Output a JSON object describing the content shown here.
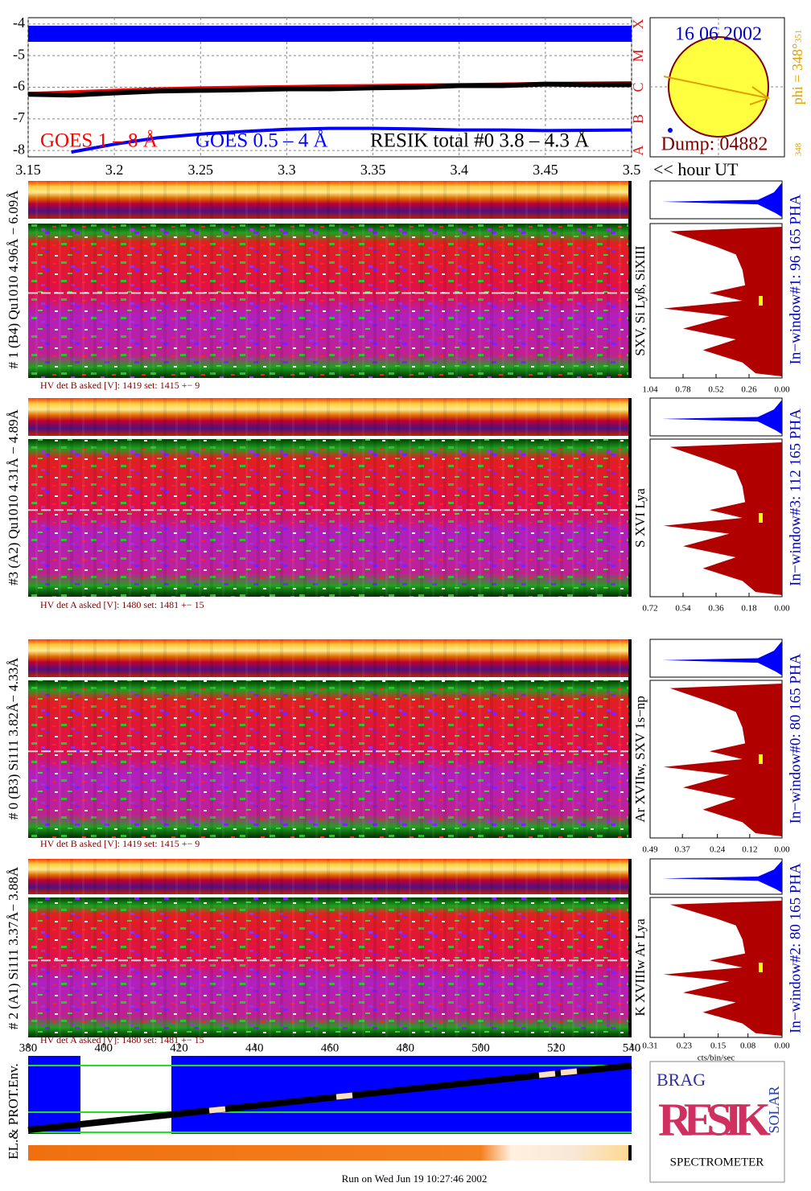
{
  "chart_data": {
    "type": "line",
    "x": [
      3.15,
      3.175,
      3.2,
      3.225,
      3.25,
      3.275,
      3.3,
      3.325,
      3.35,
      3.375,
      3.4,
      3.425,
      3.45,
      3.475,
      3.5
    ],
    "series": [
      {
        "name": "GOES 1 – 8 Å",
        "color": "#ff0000",
        "values": [
          -6.2,
          -6.15,
          -6.1,
          -6.05,
          -6.02,
          -6.0,
          -5.98,
          -5.96,
          -5.95,
          -5.93,
          -5.92,
          -5.9,
          -5.88,
          -5.87,
          -5.86
        ]
      },
      {
        "name": "GOES 0.5 – 4 Å",
        "color": "#0000ff",
        "values": [
          null,
          -8.05,
          -7.8,
          -7.6,
          -7.48,
          -7.4,
          -7.33,
          -7.3,
          -7.3,
          -7.32,
          -7.35,
          -7.35,
          -7.37,
          -7.36,
          -7.35
        ]
      },
      {
        "name": "RESIK total #0  3.8 – 4.3 Å",
        "color": "#000000",
        "values": [
          -6.22,
          -6.25,
          -6.18,
          -6.12,
          -6.1,
          -6.08,
          -6.05,
          -6.05,
          -6.02,
          -6.0,
          -5.95,
          -5.95,
          -5.9,
          -5.92,
          -5.92
        ]
      }
    ],
    "xlim": [
      3.15,
      3.5
    ],
    "xticks": [
      3.15,
      3.2,
      3.25,
      3.3,
      3.35,
      3.4,
      3.45,
      3.5
    ],
    "ylim": [
      -8.2,
      -3.8
    ],
    "yticks": [
      -4,
      -5,
      -6,
      -7,
      -8
    ],
    "grid": true,
    "x_label": "<< hour UT",
    "class_labels": [
      "X",
      "M",
      "C",
      "B",
      "A"
    ]
  },
  "sun_box": {
    "date": "16 06 2002",
    "dump": "Dump: 04882",
    "phi": "phi = 348°",
    "phi_max": "351",
    "phi_min": "348"
  },
  "panels": [
    {
      "label": "# 1 (B4) Qu1010 4.96Å − 6.09Å",
      "line_label": "SXV, Si Lyß, SiXIII",
      "window_label": "In−window#1:   96 165  PHA",
      "hv_text": "HV det B asked [V]:  1419 set:  1415  +−   9",
      "hist_xlim": [
        1.04,
        0
      ],
      "hist_ticks": [
        1.04,
        0.78,
        0.52,
        0.26,
        {
          "value": 0,
          "label": "0.00"
        }
      ]
    },
    {
      "label": "#3 (A2) Qu1010  4.31Å − 4.89Å",
      "line_label": "S XVI Lya",
      "window_label": "In−window#3:  112 165 PHA",
      "hv_text": "HV det A asked [V]:  1480 set:  1481  +−   15",
      "hist_xlim": [
        0.72,
        0
      ],
      "hist_ticks": [
        0.72,
        0.54,
        0.36,
        0.18,
        {
          "value": 0,
          "label": "0.00"
        }
      ]
    },
    {
      "label": "# 0 (B3) Si111  3.82Å− 4.33Å",
      "line_label": "Ar XVIIw,  SXV 1s−np",
      "window_label": "In−window#0:   80 165  PHA",
      "hv_text": "HV det B asked [V]:  1419 set:  1415  +−   9",
      "hist_xlim": [
        0.49,
        0
      ],
      "hist_ticks": [
        0.49,
        0.37,
        0.24,
        0.12,
        {
          "value": 0,
          "label": "0.00"
        }
      ]
    },
    {
      "label": "# 2 (A1) Si111  3.37Å− 3.88Å",
      "line_label": "K XVIIIw  Ar Lya",
      "window_label": "In−window#2:   80 165  PHA",
      "hv_text": "HV det A asked [V]:  1480 set:  1481  +−   15",
      "hist_xlim": [
        0.31,
        0
      ],
      "hist_ticks": [
        0.31,
        0.23,
        0.15,
        0.08,
        {
          "value": 0,
          "label": "0.00"
        }
      ]
    }
  ],
  "detector_axis": {
    "xlim": [
      380,
      540
    ],
    "xticks": [
      380,
      400,
      420,
      440,
      460,
      480,
      500,
      520,
      540
    ]
  },
  "hist_unit": "cts/bin/sec",
  "env_label": "EL.& PROT.Env.",
  "logo": {
    "brag": "BRAG",
    "resik": "RESIK",
    "solar": "SOLAR",
    "spectrometer": "SPECTROMETER"
  },
  "footer": "Run on Wed Jun 19 10:27:46 2002"
}
